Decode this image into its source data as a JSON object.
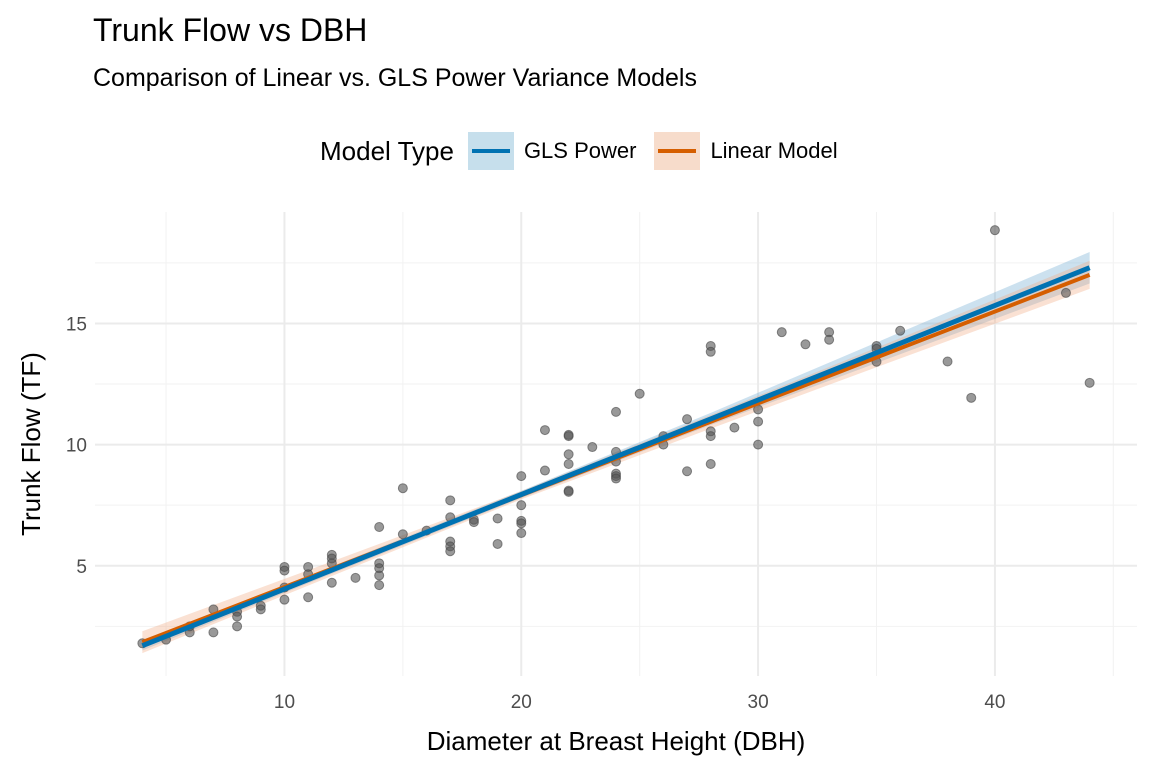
{
  "chart_data": {
    "type": "scatter",
    "title": "Trunk Flow vs DBH",
    "subtitle": "Comparison of Linear vs. GLS Power Variance Models",
    "xlabel": "Diameter at Breast Height (DBH)",
    "ylabel": "Trunk Flow (TF)",
    "xlim": [
      2,
      46
    ],
    "ylim": [
      0.45,
      19.6
    ],
    "x_ticks": [
      10,
      20,
      30,
      40
    ],
    "y_ticks": [
      5,
      10,
      15
    ],
    "grid": true,
    "legend": {
      "title": "Model Type",
      "placement": "top",
      "entries": [
        "GLS Power",
        "Linear Model"
      ]
    },
    "colors": {
      "GLS Power": "#0072B2",
      "Linear Model": "#D55E00",
      "points": "#555555"
    },
    "points": [
      [
        4,
        1.8
      ],
      [
        5,
        1.95
      ],
      [
        6,
        2.5
      ],
      [
        6,
        2.25
      ],
      [
        7,
        3.2
      ],
      [
        7,
        2.25
      ],
      [
        8,
        3.1
      ],
      [
        8,
        2.9
      ],
      [
        8,
        2.5
      ],
      [
        9,
        3.35
      ],
      [
        9,
        3.2
      ],
      [
        10,
        4.95
      ],
      [
        10,
        4.8
      ],
      [
        10,
        4.1
      ],
      [
        10,
        3.6
      ],
      [
        11,
        4.95
      ],
      [
        11,
        4.65
      ],
      [
        11,
        3.7
      ],
      [
        12,
        5.45
      ],
      [
        12,
        5.3
      ],
      [
        12,
        5.1
      ],
      [
        12,
        4.3
      ],
      [
        13,
        4.5
      ],
      [
        14,
        6.6
      ],
      [
        14,
        5.1
      ],
      [
        14,
        4.9
      ],
      [
        14,
        4.6
      ],
      [
        14,
        4.2
      ],
      [
        15,
        8.2
      ],
      [
        15,
        6.3
      ],
      [
        16,
        6.45
      ],
      [
        17,
        7.7
      ],
      [
        17,
        7.0
      ],
      [
        17,
        6.0
      ],
      [
        17,
        5.8
      ],
      [
        17,
        5.6
      ],
      [
        18,
        6.9
      ],
      [
        18,
        6.8
      ],
      [
        19,
        6.95
      ],
      [
        19,
        5.9
      ],
      [
        20,
        8.7
      ],
      [
        20,
        7.5
      ],
      [
        20,
        6.85
      ],
      [
        20,
        6.75
      ],
      [
        20,
        6.35
      ],
      [
        21,
        10.6
      ],
      [
        21,
        8.93
      ],
      [
        22,
        10.4
      ],
      [
        22,
        10.35
      ],
      [
        22,
        9.6
      ],
      [
        22,
        9.2
      ],
      [
        22,
        8.1
      ],
      [
        22,
        8.05
      ],
      [
        23,
        9.9
      ],
      [
        24,
        11.35
      ],
      [
        24,
        9.7
      ],
      [
        24,
        9.3
      ],
      [
        24,
        8.8
      ],
      [
        24,
        8.7
      ],
      [
        24,
        8.6
      ],
      [
        25,
        12.1
      ],
      [
        26,
        10.35
      ],
      [
        26,
        10.0
      ],
      [
        27,
        11.05
      ],
      [
        27,
        8.9
      ],
      [
        28,
        14.07
      ],
      [
        28,
        13.83
      ],
      [
        28,
        10.55
      ],
      [
        28,
        10.35
      ],
      [
        28,
        9.2
      ],
      [
        29,
        10.7
      ],
      [
        30,
        11.45
      ],
      [
        30,
        10.95
      ],
      [
        30,
        10.0
      ],
      [
        31,
        14.64
      ],
      [
        32,
        14.14
      ],
      [
        33,
        14.64
      ],
      [
        33,
        14.33
      ],
      [
        35,
        14.07
      ],
      [
        35,
        13.95
      ],
      [
        35,
        13.42
      ],
      [
        36,
        14.7
      ],
      [
        38,
        13.43
      ],
      [
        39,
        11.93
      ],
      [
        40,
        18.85
      ],
      [
        43,
        16.26
      ],
      [
        44,
        12.55
      ]
    ],
    "fits": [
      {
        "name": "GLS Power",
        "intercept": 0.14,
        "slope": 0.39,
        "band_x": [
          4,
          12,
          20,
          28,
          36,
          44
        ],
        "band_halfwidth": [
          0.2,
          0.15,
          0.15,
          0.25,
          0.45,
          0.65
        ]
      },
      {
        "name": "Linear Model",
        "intercept": 0.33,
        "slope": 0.379,
        "band_x": [
          4,
          12,
          20,
          28,
          36,
          44
        ],
        "band_halfwidth": [
          0.45,
          0.3,
          0.17,
          0.28,
          0.42,
          0.58
        ]
      }
    ]
  }
}
